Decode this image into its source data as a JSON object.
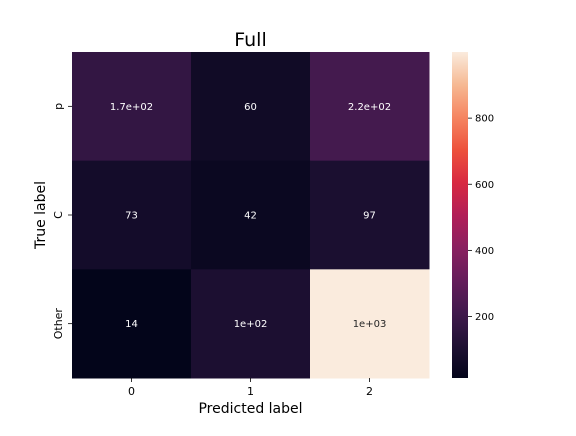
{
  "chart_data": {
    "type": "heatmap",
    "title": "Full",
    "xlabel": "Predicted label",
    "ylabel": "True label",
    "x_categories": [
      "0",
      "1",
      "2"
    ],
    "y_categories": [
      "p",
      "C",
      "Other"
    ],
    "values": [
      [
        170,
        60,
        220
      ],
      [
        73,
        42,
        97
      ],
      [
        14,
        100,
        1000
      ]
    ],
    "annotations": [
      [
        "1.7e+02",
        "60",
        "2.2e+02"
      ],
      [
        "73",
        "42",
        "97"
      ],
      [
        "14",
        "1e+02",
        "1e+03"
      ]
    ],
    "colorbar": {
      "min": 14,
      "max": 1000,
      "ticks": [
        200,
        400,
        600,
        800
      ],
      "tick_labels": [
        "200",
        "400",
        "600",
        "800"
      ],
      "colormap": "rocket"
    }
  }
}
